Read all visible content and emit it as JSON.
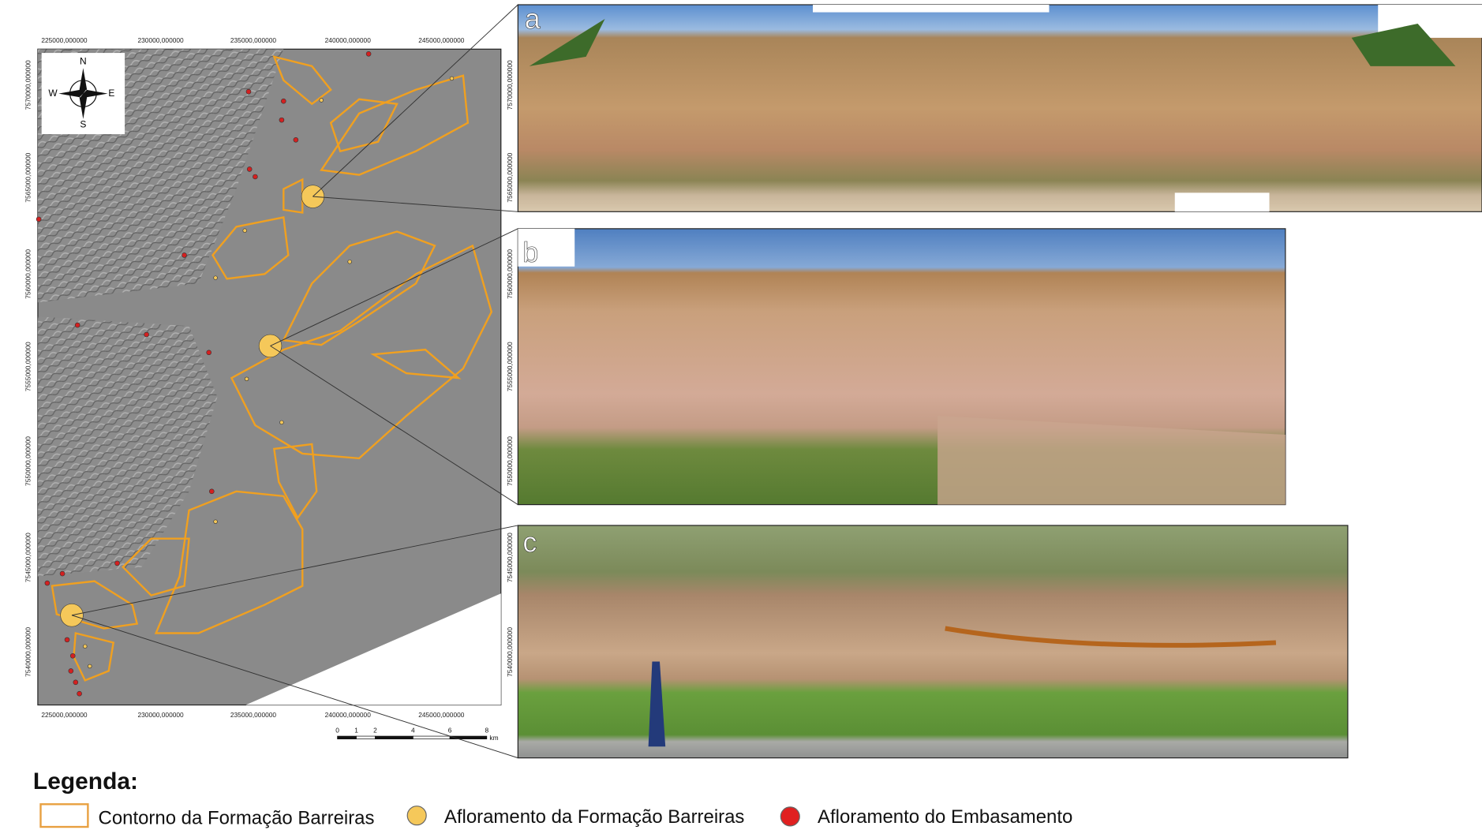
{
  "map": {
    "x_labels_top": [
      "225000,000000",
      "230000,000000",
      "235000,000000",
      "240000,000000",
      "245000,000000"
    ],
    "x_labels_bottom": [
      "225000,000000",
      "230000,000000",
      "235000,000000",
      "240000,000000",
      "245000,000000"
    ],
    "y_labels_left": [
      "7570000,000000",
      "7565000,000000",
      "7560000,000000",
      "7555000,000000",
      "7550000,000000",
      "7545000,000000",
      "7540000,000000"
    ],
    "y_labels_right": [
      "7570000,000000",
      "7565000,000000",
      "7560000,000000",
      "7555000,000000",
      "7550000,000000",
      "7545000,000000",
      "7540000,000000"
    ],
    "compass": {
      "north": "N",
      "south": "S",
      "east": "E",
      "west": "W"
    },
    "scale_bar": {
      "labels": [
        "0",
        "1",
        "2",
        "4",
        "6",
        "8"
      ],
      "unit": "km"
    }
  },
  "photos": [
    {
      "label": "a"
    },
    {
      "label": "b"
    },
    {
      "label": "c"
    }
  ],
  "legend": {
    "title": "Legenda:",
    "items": [
      "Contorno da Formação Barreiras",
      "Afloramento da Formação Barreiras",
      "Afloramento do Embasamento"
    ]
  }
}
